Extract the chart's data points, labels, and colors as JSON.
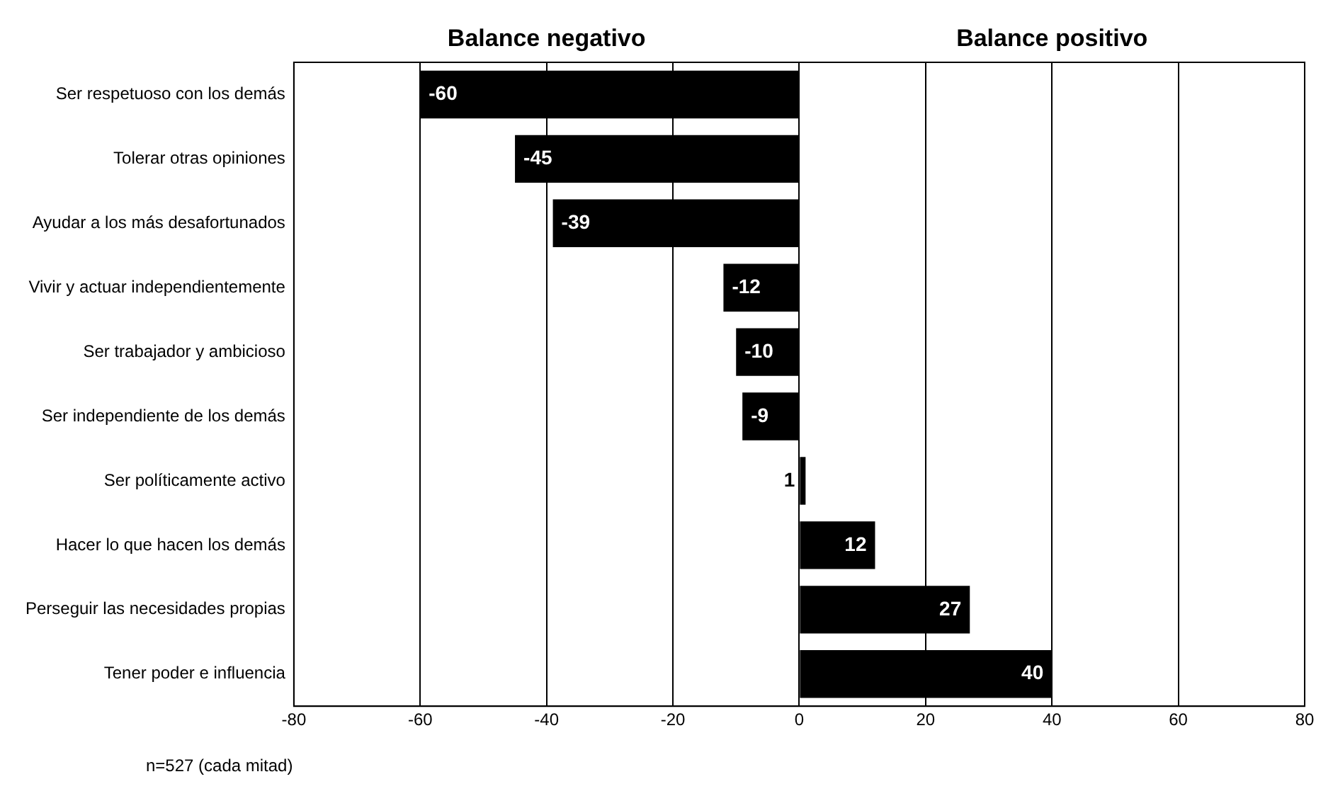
{
  "chart_data": {
    "type": "bar",
    "orientation": "horizontal",
    "categories": [
      "Ser respetuoso con los demás",
      "Tolerar otras opiniones",
      "Ayudar a los más desafortunados",
      "Vivir y actuar independientemente",
      "Ser trabajador y ambicioso",
      "Ser independiente de los demás",
      "Ser políticamente activo",
      "Hacer lo que hacen los demás",
      "Perseguir las necesidades propias",
      "Tener poder e influencia"
    ],
    "values": [
      -60,
      -45,
      -39,
      -12,
      -10,
      -9,
      1,
      12,
      27,
      40
    ],
    "color": "#000000",
    "xlim": [
      -80,
      80
    ],
    "xticks": [
      -80,
      -60,
      -40,
      -20,
      0,
      20,
      40,
      60,
      80
    ],
    "grid": "x",
    "data_labels": true,
    "legend": false,
    "annotations": [
      "Balance negativo",
      "Balance positivo",
      "n=527 (cada mitad)"
    ]
  }
}
